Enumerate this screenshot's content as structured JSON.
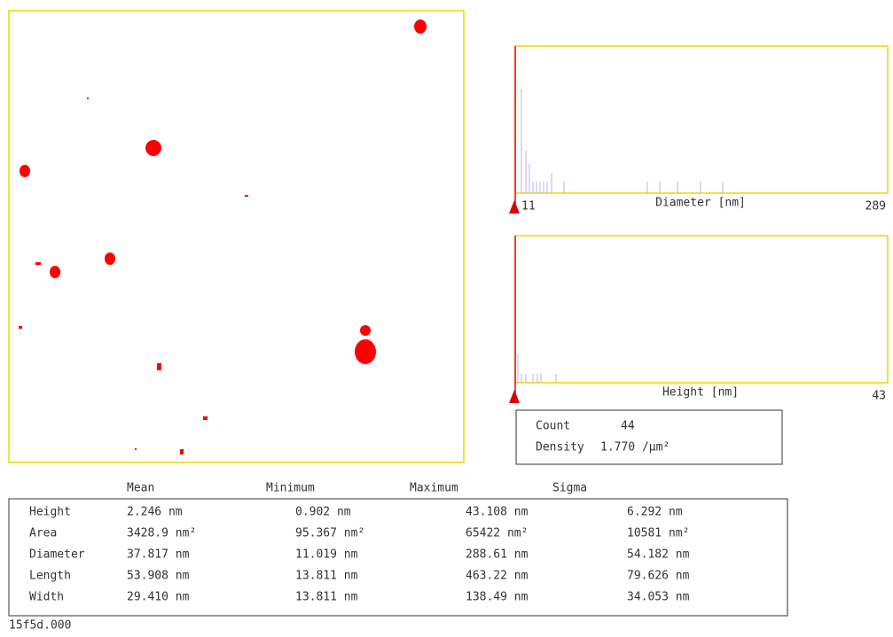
{
  "histograms": [
    {
      "axis_label": "Diameter [nm]",
      "min_label": "11",
      "max_label": "289"
    },
    {
      "axis_label": "Height [nm]",
      "max_label": "43"
    }
  ],
  "summary": {
    "count_label": "Count",
    "count": 44,
    "density_label": "Density",
    "density": "1.770 /µm²"
  },
  "table": {
    "columns": [
      "Mean",
      "Minimum",
      "Maximum",
      "Sigma"
    ],
    "rows": [
      [
        "Height",
        "2.246 nm",
        "0.902 nm",
        "43.108 nm",
        "6.292 nm"
      ],
      [
        "Area",
        "3428.9 nm²",
        "95.367 nm²",
        "65422 nm²",
        "10581 nm²"
      ],
      [
        "Diameter",
        "37.817 nm",
        "11.019 nm",
        "288.61 nm",
        "54.182 nm"
      ],
      [
        "Length",
        "53.908 nm",
        "13.811 nm",
        "463.22 nm",
        "79.626 nm"
      ],
      [
        "Width",
        "29.410 nm",
        "13.811 nm",
        "138.49 nm",
        "34.053 nm"
      ]
    ]
  },
  "footer": "15f5d.000"
}
